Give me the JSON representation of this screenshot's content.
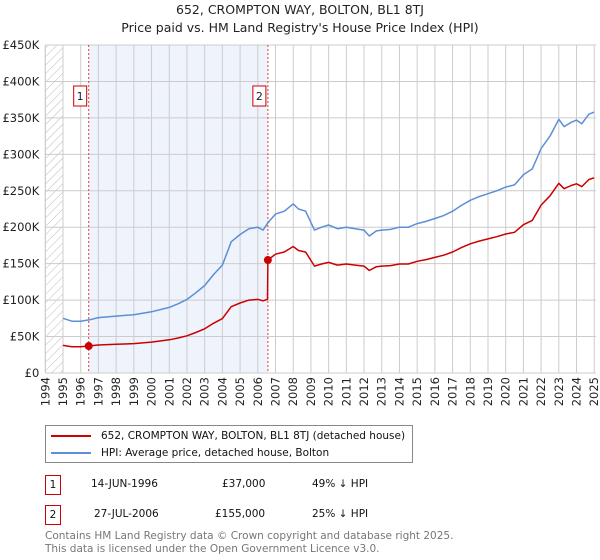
{
  "title": {
    "line1": "652, CROMPTON WAY, BOLTON, BL1 8TJ",
    "line2": "Price paid vs. HM Land Registry's House Price Index (HPI)"
  },
  "chart_data": {
    "type": "line",
    "title": "652, CROMPTON WAY, BOLTON, BL1 8TJ - Price paid vs. HM Land Registry's House Price Index (HPI)",
    "xlim": [
      1994,
      2025.1
    ],
    "ylim": [
      0,
      450000
    ],
    "grid": true,
    "y_ticks": [
      0,
      50000,
      100000,
      150000,
      200000,
      250000,
      300000,
      350000,
      400000,
      450000
    ],
    "y_tick_labels": [
      "£0",
      "£50K",
      "£100K",
      "£150K",
      "£200K",
      "£250K",
      "£300K",
      "£350K",
      "£400K",
      "£450K"
    ],
    "x_ticks": [
      1994,
      1995,
      1996,
      1997,
      1998,
      1999,
      2000,
      2001,
      2002,
      2003,
      2004,
      2005,
      2006,
      2007,
      2008,
      2009,
      2010,
      2011,
      2012,
      2013,
      2014,
      2015,
      2016,
      2017,
      2018,
      2019,
      2020,
      2021,
      2022,
      2023,
      2024,
      2025
    ],
    "x_tick_labels": [
      "1994",
      "1995",
      "1996",
      "1997",
      "1998",
      "1999",
      "2000",
      "2001",
      "2002",
      "2003",
      "2004",
      "2005",
      "2006",
      "2007",
      "2008",
      "2009",
      "2010",
      "2011",
      "2012",
      "2013",
      "2014",
      "2015",
      "2016",
      "2017",
      "2018",
      "2019",
      "2020",
      "2021",
      "2022",
      "2023",
      "2024",
      "2025"
    ],
    "series": [
      {
        "name": "652, CROMPTON WAY, BOLTON, BL1 8TJ (detached house)",
        "color": "#cc0000",
        "x": [
          1995,
          1995.5,
          1996,
          1996.45,
          1997,
          1998,
          1999,
          2000,
          2001,
          2001.5,
          2002,
          2002.5,
          2003,
          2003.5,
          2004,
          2004.5,
          2005,
          2005.5,
          2006,
          2006.3,
          2006.55,
          2006.57,
          2007,
          2007.5,
          2008,
          2008.3,
          2008.7,
          2009.2,
          2009.6,
          2010,
          2010.5,
          2011,
          2011.5,
          2012,
          2012.3,
          2012.7,
          2013,
          2013.5,
          2014,
          2014.5,
          2015,
          2015.5,
          2016,
          2016.5,
          2017,
          2017.5,
          2018,
          2018.5,
          2019,
          2019.5,
          2020,
          2020.5,
          2021,
          2021.5,
          2022,
          2022.5,
          2023,
          2023.3,
          2023.7,
          2024,
          2024.3,
          2024.7,
          2025
        ],
        "y": [
          37900,
          35900,
          35900,
          37000,
          38400,
          39400,
          40400,
          42400,
          45500,
          48000,
          51000,
          55600,
          60600,
          68200,
          74700,
          90900,
          96000,
          100000,
          101000,
          99000,
          101000,
          155000,
          163000,
          166000,
          173500,
          168000,
          166000,
          146600,
          149600,
          151800,
          148000,
          149600,
          148000,
          146600,
          140600,
          145900,
          146600,
          147400,
          149600,
          149600,
          153300,
          155600,
          158600,
          161600,
          166000,
          172000,
          177300,
          181000,
          184000,
          187000,
          190700,
          193000,
          203500,
          209400,
          230400,
          243100,
          260300,
          252800,
          257300,
          259600,
          255800,
          265500,
          267800
        ]
      },
      {
        "name": "HPI: Average price, detached house, Bolton",
        "color": "#5b8fd6",
        "x": [
          1995,
          1995.5,
          1996,
          1996.5,
          1997,
          1998,
          1999,
          2000,
          2001,
          2001.5,
          2002,
          2002.5,
          2003,
          2003.5,
          2004,
          2004.5,
          2005,
          2005.5,
          2006,
          2006.3,
          2006.6,
          2007,
          2007.5,
          2008,
          2008.3,
          2008.7,
          2009.2,
          2009.6,
          2010,
          2010.5,
          2011,
          2011.5,
          2012,
          2012.3,
          2012.7,
          2013,
          2013.5,
          2014,
          2014.5,
          2015,
          2015.5,
          2016,
          2016.5,
          2017,
          2017.5,
          2018,
          2018.5,
          2019,
          2019.5,
          2020,
          2020.5,
          2021,
          2021.5,
          2022,
          2022.5,
          2023,
          2023.3,
          2023.7,
          2024,
          2024.3,
          2024.7,
          2025
        ],
        "y": [
          75000,
          71000,
          71000,
          73000,
          76000,
          78000,
          80000,
          84000,
          90000,
          95000,
          101000,
          110000,
          120000,
          135000,
          148000,
          180000,
          190000,
          198000,
          200000,
          196000,
          207000,
          218000,
          222000,
          232000,
          225000,
          222000,
          196000,
          200000,
          203000,
          198000,
          200000,
          198000,
          196000,
          188000,
          195000,
          196000,
          197000,
          200000,
          200000,
          205000,
          208000,
          212000,
          216000,
          222000,
          230000,
          237000,
          242000,
          246000,
          250000,
          255000,
          258000,
          272000,
          280000,
          308000,
          325000,
          348000,
          338000,
          344000,
          347000,
          342000,
          355000,
          358000
        ]
      }
    ],
    "sales": [
      {
        "id": "1",
        "x": 1996.45,
        "y": 37000
      },
      {
        "id": "2",
        "x": 2006.57,
        "y": 155000
      }
    ],
    "shaded_range": [
      1996.45,
      2006.57
    ],
    "hatched_range": [
      1994,
      1995
    ],
    "legend_position": "bottom"
  },
  "legend": [
    {
      "label": "652, CROMPTON WAY, BOLTON, BL1 8TJ (detached house)",
      "color": "#cc0000"
    },
    {
      "label": "HPI: Average price, detached house, Bolton",
      "color": "#5b8fd6"
    }
  ],
  "transactions": [
    {
      "id": "1",
      "date": "14-JUN-1996",
      "price": "£37,000",
      "hpi": "49% ↓ HPI"
    },
    {
      "id": "2",
      "date": "27-JUL-2006",
      "price": "£155,000",
      "hpi": "25% ↓ HPI"
    }
  ],
  "footer": {
    "line1": "Contains HM Land Registry data © Crown copyright and database right 2025.",
    "line2": "This data is licensed under the Open Government Licence v3.0."
  }
}
